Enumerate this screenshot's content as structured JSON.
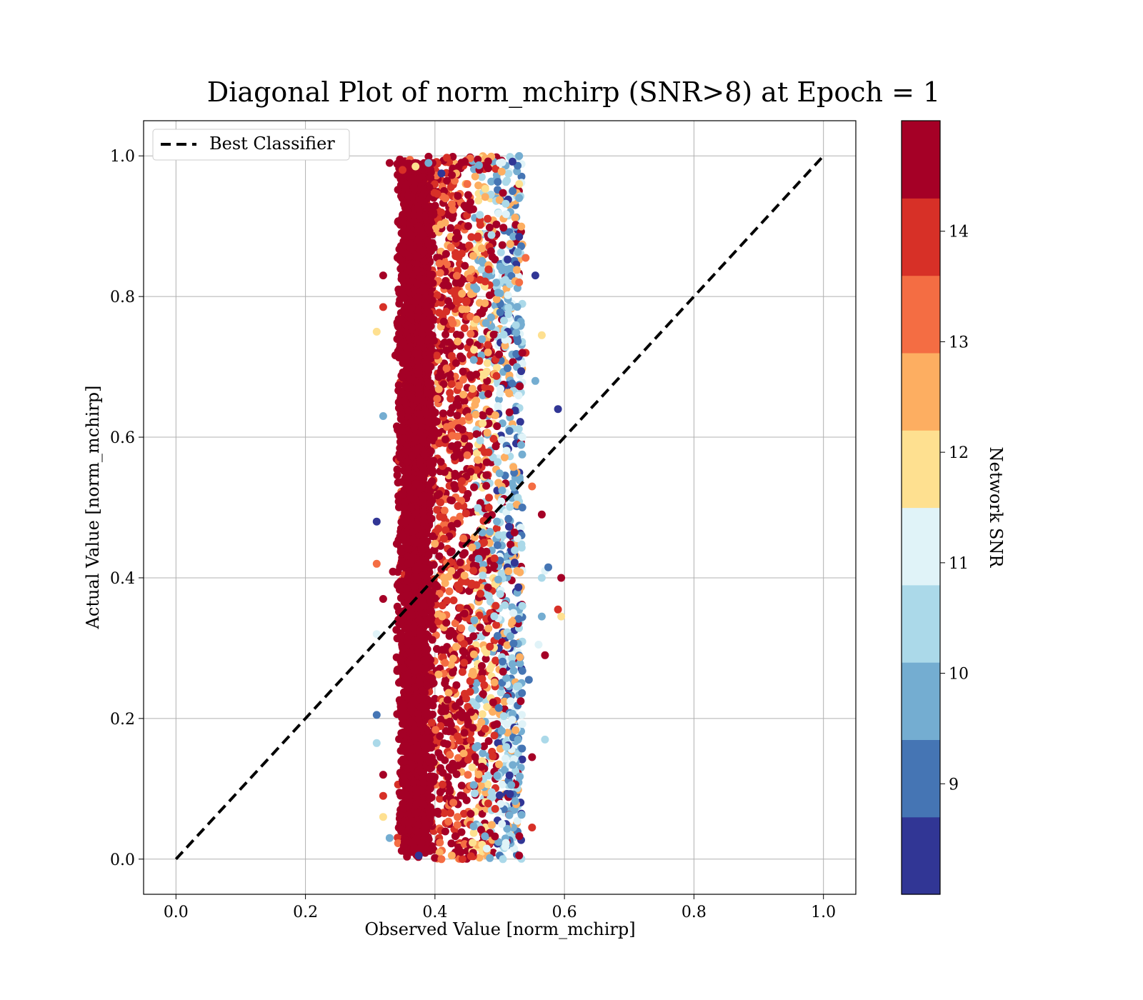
{
  "chart_data": {
    "type": "scatter",
    "title": "Diagonal Plot of norm_mchirp (SNR>8) at Epoch = 1",
    "xlabel": "Observed Value [norm_mchirp]",
    "ylabel": "Actual Value [norm_mchirp]",
    "xlim": [
      -0.05,
      1.05
    ],
    "ylim": [
      -0.05,
      1.05
    ],
    "x_ticks": [
      "0.0",
      "0.2",
      "0.4",
      "0.6",
      "0.8",
      "1.0"
    ],
    "y_ticks": [
      "0.0",
      "0.2",
      "0.4",
      "0.6",
      "0.8",
      "1.0"
    ],
    "grid": true,
    "legend": {
      "placement": "upper-left",
      "entries": [
        "Best Classifier"
      ]
    },
    "reference_line": {
      "name": "Best Classifier",
      "style": "dashed",
      "color": "#000000",
      "x": [
        0.0,
        1.0
      ],
      "y": [
        0.0,
        1.0
      ]
    },
    "colorbar": {
      "label": "Network SNR",
      "range": [
        8,
        15
      ],
      "ticks": [
        "9",
        "10",
        "11",
        "12",
        "13",
        "14"
      ],
      "tick_values": [
        9,
        10,
        11,
        12,
        13,
        14
      ],
      "colors": [
        "#313695",
        "#4575b4",
        "#74add1",
        "#abd9e9",
        "#e0f3f8",
        "#fee090",
        "#fdae61",
        "#f46d43",
        "#d73027",
        "#a50026"
      ]
    },
    "scatter_summary": {
      "x_range": [
        0.31,
        0.6
      ],
      "y_range": [
        0.0,
        1.0
      ],
      "dense_x_range": [
        0.33,
        0.42
      ],
      "dense_color": "#a50026"
    },
    "series": [
      {
        "points": [
          [
            0.33,
            0.99
          ],
          [
            0.35,
            0.98
          ],
          [
            0.37,
            0.985
          ],
          [
            0.39,
            0.99
          ],
          [
            0.41,
            0.975
          ],
          [
            0.45,
            0.96
          ],
          [
            0.48,
            0.985
          ],
          [
            0.5,
            0.99
          ],
          [
            0.52,
            0.95
          ],
          [
            0.53,
            0.94
          ],
          [
            0.32,
            0.83
          ],
          [
            0.32,
            0.785
          ],
          [
            0.31,
            0.75
          ],
          [
            0.32,
            0.63
          ],
          [
            0.31,
            0.48
          ],
          [
            0.31,
            0.42
          ],
          [
            0.32,
            0.37
          ],
          [
            0.31,
            0.32
          ],
          [
            0.31,
            0.205
          ],
          [
            0.31,
            0.165
          ],
          [
            0.32,
            0.12
          ],
          [
            0.32,
            0.09
          ],
          [
            0.32,
            0.06
          ],
          [
            0.33,
            0.03
          ],
          [
            0.375,
            0.005
          ],
          [
            0.41,
            0.0
          ],
          [
            0.44,
            0.01
          ],
          [
            0.48,
            0.015
          ],
          [
            0.5,
            0.005
          ],
          [
            0.505,
            0.0
          ],
          [
            0.53,
            0.005
          ],
          [
            0.54,
            0.72
          ],
          [
            0.565,
            0.745
          ],
          [
            0.555,
            0.68
          ],
          [
            0.59,
            0.64
          ],
          [
            0.55,
            0.53
          ],
          [
            0.565,
            0.49
          ],
          [
            0.57,
            0.41
          ],
          [
            0.575,
            0.415
          ],
          [
            0.565,
            0.4
          ],
          [
            0.595,
            0.4
          ],
          [
            0.59,
            0.355
          ],
          [
            0.595,
            0.345
          ],
          [
            0.565,
            0.345
          ],
          [
            0.555,
            0.83
          ],
          [
            0.54,
            0.855
          ],
          [
            0.57,
            0.29
          ],
          [
            0.56,
            0.305
          ],
          [
            0.545,
            0.255
          ],
          [
            0.57,
            0.17
          ],
          [
            0.55,
            0.145
          ],
          [
            0.55,
            0.045
          ],
          [
            0.53,
            0.96
          ],
          [
            0.53,
            0.94
          ],
          [
            0.53,
            0.885
          ],
          [
            0.53,
            0.82
          ],
          [
            0.535,
            0.72
          ],
          [
            0.535,
            0.6
          ],
          [
            0.535,
            0.5
          ],
          [
            0.535,
            0.36
          ]
        ]
      }
    ]
  }
}
